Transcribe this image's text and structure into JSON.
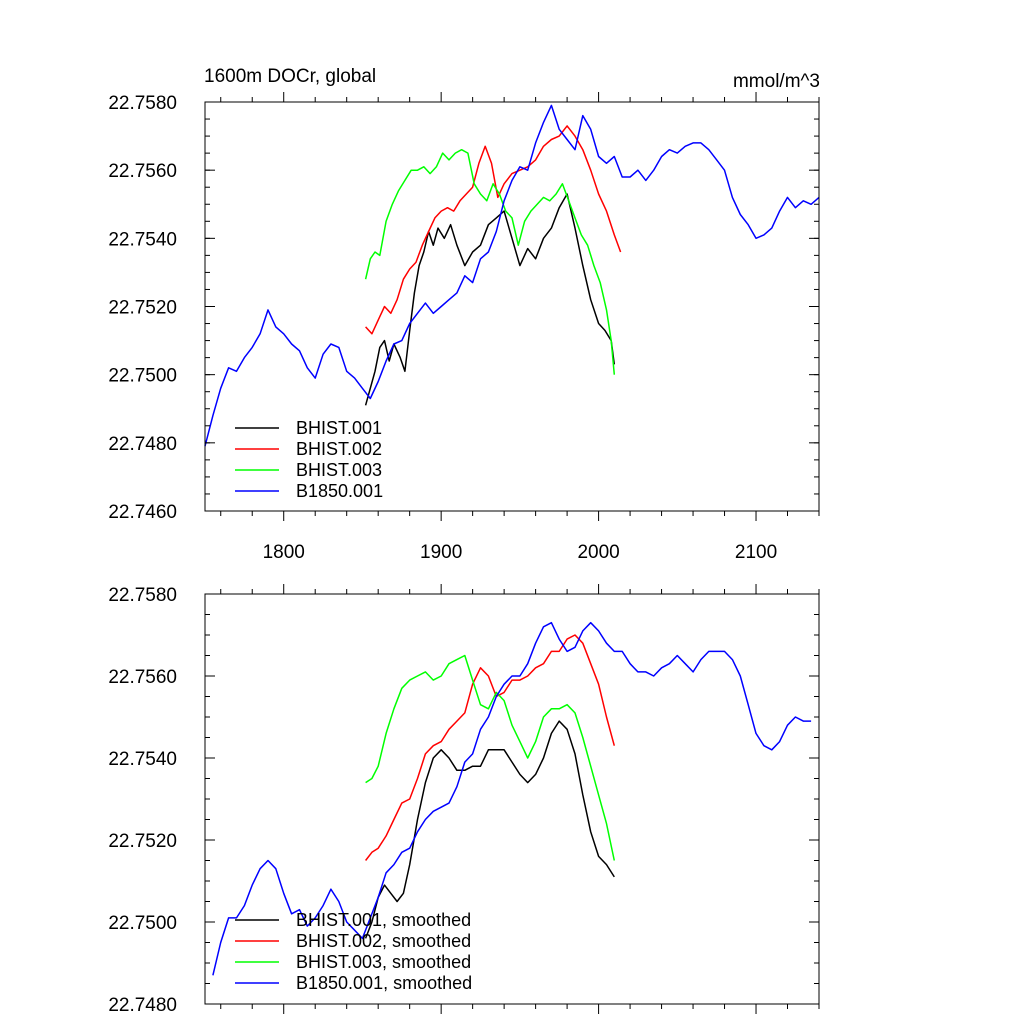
{
  "chart_data": [
    {
      "type": "line",
      "title": "1600m DOCr, global",
      "units_label": "mmol/m^3",
      "xlim": [
        1750,
        2140
      ],
      "ylim": [
        22.746,
        22.758
      ],
      "x_ticks": [
        1800,
        1900,
        2000,
        2100
      ],
      "x_tick_labels": [
        "1800",
        "1900",
        "2000",
        "2100"
      ],
      "y_ticks": [
        22.746,
        22.748,
        22.75,
        22.752,
        22.754,
        22.756,
        22.758
      ],
      "y_tick_labels": [
        "22.7460",
        "22.7480",
        "22.7500",
        "22.7520",
        "22.7540",
        "22.7560",
        "22.7580"
      ],
      "legend_position": "bottom-left",
      "series": [
        {
          "name": "BHIST.001",
          "color": "#000000",
          "x": [
            1852,
            1855,
            1858,
            1861,
            1864,
            1867,
            1870,
            1874,
            1877,
            1880,
            1883,
            1886,
            1889,
            1892,
            1895,
            1898,
            1902,
            1906,
            1910,
            1915,
            1920,
            1925,
            1930,
            1935,
            1940,
            1945,
            1950,
            1955,
            1960,
            1965,
            1970,
            1975,
            1980,
            1985,
            1990,
            1995,
            2000,
            2004,
            2008,
            2010
          ],
          "y": [
            22.7491,
            22.7496,
            22.7501,
            22.7508,
            22.751,
            22.7504,
            22.7509,
            22.7505,
            22.7501,
            22.7513,
            22.7524,
            22.7532,
            22.7536,
            22.7542,
            22.7538,
            22.7543,
            22.754,
            22.7544,
            22.7538,
            22.7532,
            22.7536,
            22.7538,
            22.7544,
            22.7546,
            22.7548,
            22.754,
            22.7532,
            22.7537,
            22.7534,
            22.754,
            22.7543,
            22.7549,
            22.7553,
            22.7543,
            22.7532,
            22.7522,
            22.7515,
            22.7513,
            22.751,
            22.7503
          ]
        },
        {
          "name": "BHIST.002",
          "color": "#ff0000",
          "x": [
            1852,
            1856,
            1860,
            1864,
            1868,
            1872,
            1876,
            1880,
            1884,
            1888,
            1892,
            1896,
            1900,
            1904,
            1908,
            1912,
            1916,
            1920,
            1924,
            1928,
            1932,
            1936,
            1940,
            1945,
            1950,
            1955,
            1960,
            1965,
            1970,
            1975,
            1980,
            1985,
            1990,
            1995,
            2000,
            2005,
            2010,
            2014
          ],
          "y": [
            22.7514,
            22.7512,
            22.7516,
            22.752,
            22.7518,
            22.7522,
            22.7528,
            22.7531,
            22.7533,
            22.7538,
            22.7542,
            22.7546,
            22.7548,
            22.7549,
            22.7548,
            22.7551,
            22.7553,
            22.7555,
            22.7562,
            22.7567,
            22.7562,
            22.7552,
            22.7556,
            22.7559,
            22.756,
            22.7561,
            22.7563,
            22.7567,
            22.7569,
            22.757,
            22.7573,
            22.757,
            22.7566,
            22.756,
            22.7553,
            22.7548,
            22.7541,
            22.7536
          ]
        },
        {
          "name": "BHIST.003",
          "color": "#00ff00",
          "x": [
            1852,
            1855,
            1858,
            1861,
            1865,
            1869,
            1873,
            1877,
            1881,
            1885,
            1889,
            1893,
            1897,
            1901,
            1905,
            1909,
            1913,
            1917,
            1921,
            1925,
            1929,
            1933,
            1937,
            1941,
            1945,
            1949,
            1953,
            1957,
            1961,
            1965,
            1969,
            1973,
            1977,
            1981,
            1985,
            1989,
            1993,
            1997,
            2001,
            2005,
            2008,
            2010
          ],
          "y": [
            22.7528,
            22.7534,
            22.7536,
            22.7535,
            22.7545,
            22.755,
            22.7554,
            22.7557,
            22.756,
            22.756,
            22.7561,
            22.7559,
            22.7561,
            22.7565,
            22.7563,
            22.7565,
            22.7566,
            22.7565,
            22.7556,
            22.7553,
            22.7551,
            22.7556,
            22.7553,
            22.7548,
            22.7546,
            22.7538,
            22.7545,
            22.7548,
            22.755,
            22.7552,
            22.7551,
            22.7553,
            22.7556,
            22.7551,
            22.7546,
            22.7541,
            22.7538,
            22.7532,
            22.7527,
            22.7519,
            22.751,
            22.75
          ]
        },
        {
          "name": "B1850.001",
          "color": "#0000ff",
          "x": [
            1750,
            1755,
            1760,
            1765,
            1770,
            1775,
            1780,
            1785,
            1790,
            1795,
            1800,
            1805,
            1810,
            1815,
            1820,
            1825,
            1830,
            1835,
            1840,
            1845,
            1850,
            1855,
            1860,
            1865,
            1870,
            1875,
            1880,
            1885,
            1890,
            1895,
            1900,
            1905,
            1910,
            1915,
            1920,
            1925,
            1930,
            1935,
            1940,
            1945,
            1950,
            1955,
            1960,
            1965,
            1970,
            1975,
            1980,
            1985,
            1990,
            1995,
            2000,
            2005,
            2010,
            2015,
            2020,
            2025,
            2030,
            2035,
            2040,
            2045,
            2050,
            2055,
            2060,
            2065,
            2070,
            2075,
            2080,
            2085,
            2090,
            2095,
            2100,
            2105,
            2110,
            2115,
            2120,
            2125,
            2130,
            2135,
            2140
          ],
          "y": [
            22.7479,
            22.7488,
            22.7496,
            22.7502,
            22.7501,
            22.7505,
            22.7508,
            22.7512,
            22.7519,
            22.7514,
            22.7512,
            22.7509,
            22.7507,
            22.7502,
            22.7499,
            22.7506,
            22.7509,
            22.7508,
            22.7501,
            22.7499,
            22.7496,
            22.7493,
            22.7498,
            22.7504,
            22.7509,
            22.751,
            22.7515,
            22.7518,
            22.7521,
            22.7518,
            22.752,
            22.7522,
            22.7524,
            22.7529,
            22.7527,
            22.7534,
            22.7536,
            22.7542,
            22.7551,
            22.7557,
            22.7561,
            22.756,
            22.7568,
            22.7574,
            22.7579,
            22.7572,
            22.7569,
            22.7566,
            22.7576,
            22.7572,
            22.7564,
            22.7562,
            22.7564,
            22.7558,
            22.7558,
            22.756,
            22.7557,
            22.756,
            22.7564,
            22.7566,
            22.7565,
            22.7567,
            22.7568,
            22.7568,
            22.7566,
            22.7563,
            22.756,
            22.7552,
            22.7547,
            22.7544,
            22.754,
            22.7541,
            22.7543,
            22.7548,
            22.7552,
            22.7549,
            22.7551,
            22.755,
            22.7552
          ]
        }
      ]
    },
    {
      "type": "line",
      "title": "",
      "xlim": [
        1750,
        2140
      ],
      "ylim": [
        22.748,
        22.758
      ],
      "x_ticks": [
        1800,
        1900,
        2000,
        2100
      ],
      "x_tick_labels": [],
      "y_ticks": [
        22.748,
        22.75,
        22.752,
        22.754,
        22.756,
        22.758
      ],
      "y_tick_labels": [
        "22.7480",
        "22.7500",
        "22.7520",
        "22.7540",
        "22.7560",
        "22.7580"
      ],
      "legend_position": "bottom-left",
      "series": [
        {
          "name": "BHIST.001, smoothed",
          "color": "#000000",
          "x": [
            1852,
            1856,
            1860,
            1864,
            1868,
            1872,
            1876,
            1880,
            1885,
            1890,
            1895,
            1900,
            1905,
            1910,
            1915,
            1920,
            1925,
            1930,
            1935,
            1940,
            1945,
            1950,
            1955,
            1960,
            1965,
            1970,
            1975,
            1980,
            1985,
            1990,
            1995,
            2000,
            2005,
            2010
          ],
          "y": [
            22.7496,
            22.75,
            22.7506,
            22.7509,
            22.7507,
            22.7505,
            22.7507,
            22.7514,
            22.7525,
            22.7534,
            22.754,
            22.7542,
            22.754,
            22.7537,
            22.7537,
            22.7538,
            22.7538,
            22.7542,
            22.7542,
            22.7542,
            22.7539,
            22.7536,
            22.7534,
            22.7536,
            22.754,
            22.7546,
            22.7549,
            22.7547,
            22.7541,
            22.7531,
            22.7522,
            22.7516,
            22.7514,
            22.7511
          ]
        },
        {
          "name": "BHIST.002, smoothed",
          "color": "#ff0000",
          "x": [
            1852,
            1856,
            1860,
            1865,
            1870,
            1875,
            1880,
            1885,
            1890,
            1895,
            1900,
            1905,
            1910,
            1915,
            1920,
            1925,
            1930,
            1935,
            1940,
            1945,
            1950,
            1955,
            1960,
            1965,
            1970,
            1975,
            1980,
            1985,
            1990,
            1995,
            2000,
            2005,
            2010
          ],
          "y": [
            22.7515,
            22.7517,
            22.7518,
            22.7521,
            22.7525,
            22.7529,
            22.753,
            22.7535,
            22.7541,
            22.7543,
            22.7544,
            22.7547,
            22.7549,
            22.7551,
            22.7558,
            22.7562,
            22.756,
            22.7555,
            22.7556,
            22.7559,
            22.7559,
            22.756,
            22.7562,
            22.7563,
            22.7566,
            22.7566,
            22.7569,
            22.757,
            22.7568,
            22.7563,
            22.7558,
            22.755,
            22.7543
          ]
        },
        {
          "name": "BHIST.003, smoothed",
          "color": "#00ff00",
          "x": [
            1852,
            1856,
            1860,
            1865,
            1870,
            1875,
            1880,
            1885,
            1890,
            1895,
            1900,
            1905,
            1910,
            1915,
            1920,
            1925,
            1930,
            1935,
            1940,
            1945,
            1950,
            1955,
            1960,
            1965,
            1970,
            1975,
            1980,
            1985,
            1990,
            1995,
            2000,
            2005,
            2010
          ],
          "y": [
            22.7534,
            22.7535,
            22.7538,
            22.7546,
            22.7552,
            22.7557,
            22.7559,
            22.756,
            22.7561,
            22.7559,
            22.756,
            22.7563,
            22.7564,
            22.7565,
            22.7559,
            22.7553,
            22.7552,
            22.7556,
            22.7554,
            22.7548,
            22.7544,
            22.754,
            22.7544,
            22.755,
            22.7552,
            22.7552,
            22.7553,
            22.7551,
            22.7545,
            22.7538,
            22.7531,
            22.7524,
            22.7515
          ]
        },
        {
          "name": "B1850.001, smoothed",
          "color": "#0000ff",
          "x": [
            1755,
            1760,
            1765,
            1770,
            1775,
            1780,
            1785,
            1790,
            1795,
            1800,
            1805,
            1810,
            1815,
            1820,
            1825,
            1830,
            1835,
            1840,
            1845,
            1850,
            1855,
            1860,
            1865,
            1870,
            1875,
            1880,
            1885,
            1890,
            1895,
            1900,
            1905,
            1910,
            1915,
            1920,
            1925,
            1930,
            1935,
            1940,
            1945,
            1950,
            1955,
            1960,
            1965,
            1970,
            1975,
            1980,
            1985,
            1990,
            1995,
            2000,
            2005,
            2010,
            2015,
            2020,
            2025,
            2030,
            2035,
            2040,
            2045,
            2050,
            2055,
            2060,
            2065,
            2070,
            2075,
            2080,
            2085,
            2090,
            2095,
            2100,
            2105,
            2110,
            2115,
            2120,
            2125,
            2130,
            2135
          ],
          "y": [
            22.7487,
            22.7495,
            22.7501,
            22.7501,
            22.7504,
            22.7509,
            22.7513,
            22.7515,
            22.7513,
            22.7507,
            22.7502,
            22.7503,
            22.7499,
            22.7501,
            22.7504,
            22.7508,
            22.7505,
            22.75,
            22.7498,
            22.7496,
            22.7501,
            22.7506,
            22.7512,
            22.7514,
            22.7517,
            22.7518,
            22.7522,
            22.7525,
            22.7527,
            22.7528,
            22.7529,
            22.7533,
            22.7539,
            22.7541,
            22.7547,
            22.755,
            22.7555,
            22.7558,
            22.756,
            22.756,
            22.7563,
            22.7568,
            22.7572,
            22.7573,
            22.7569,
            22.7566,
            22.7567,
            22.7571,
            22.7573,
            22.7571,
            22.7568,
            22.7566,
            22.7566,
            22.7563,
            22.7561,
            22.7561,
            22.756,
            22.7562,
            22.7563,
            22.7565,
            22.7563,
            22.7561,
            22.7564,
            22.7566,
            22.7566,
            22.7566,
            22.7564,
            22.756,
            22.7553,
            22.7546,
            22.7543,
            22.7542,
            22.7544,
            22.7548,
            22.755,
            22.7549,
            22.7549
          ]
        }
      ]
    }
  ]
}
